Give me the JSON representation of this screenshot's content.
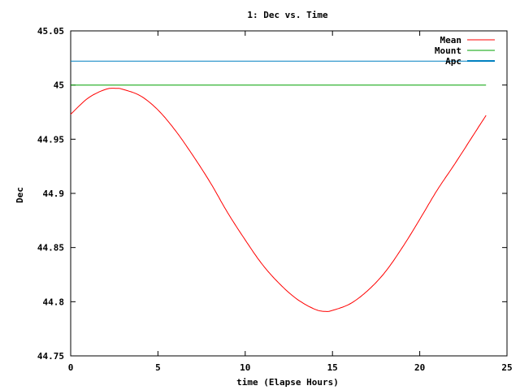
{
  "chart_data": {
    "type": "line",
    "title": "1: Dec vs. Time",
    "xlabel": "time (Elapse Hours)",
    "ylabel": "Dec",
    "xlim": [
      0,
      25
    ],
    "ylim": [
      44.75,
      45.05
    ],
    "xticks": [
      0,
      5,
      10,
      15,
      20,
      25
    ],
    "xtick_labels": [
      "0",
      "5",
      "10",
      "15",
      "20",
      "25"
    ],
    "yticks": [
      44.75,
      44.8,
      44.85,
      44.9,
      44.95,
      45,
      45.05
    ],
    "ytick_labels": [
      "44.75",
      "44.8",
      "44.85",
      "44.9",
      "44.95",
      "45",
      "45.05"
    ],
    "legend_position": "top-right",
    "series": [
      {
        "name": "Mean",
        "color": "#ff0000",
        "x": [
          0,
          1,
          2,
          2.6,
          3,
          4,
          5,
          6,
          7,
          8,
          9,
          10,
          11,
          12,
          13,
          14,
          14.6,
          15,
          16,
          17,
          18,
          19,
          20,
          21,
          22,
          23,
          23.8
        ],
        "y": [
          44.973,
          44.988,
          44.996,
          44.997,
          44.996,
          44.99,
          44.977,
          44.958,
          44.935,
          44.91,
          44.882,
          44.857,
          44.834,
          44.816,
          44.802,
          44.793,
          44.791,
          44.792,
          44.798,
          44.81,
          44.827,
          44.85,
          44.876,
          44.903,
          44.927,
          44.952,
          44.972
        ]
      },
      {
        "name": "Mount",
        "color": "#00a000",
        "x": [
          0,
          23.8
        ],
        "y": [
          45.0,
          45.0
        ]
      },
      {
        "name": "Apc",
        "color": "#0080c0",
        "x": [
          0,
          24
        ],
        "y": [
          45.022,
          45.022
        ]
      }
    ]
  }
}
